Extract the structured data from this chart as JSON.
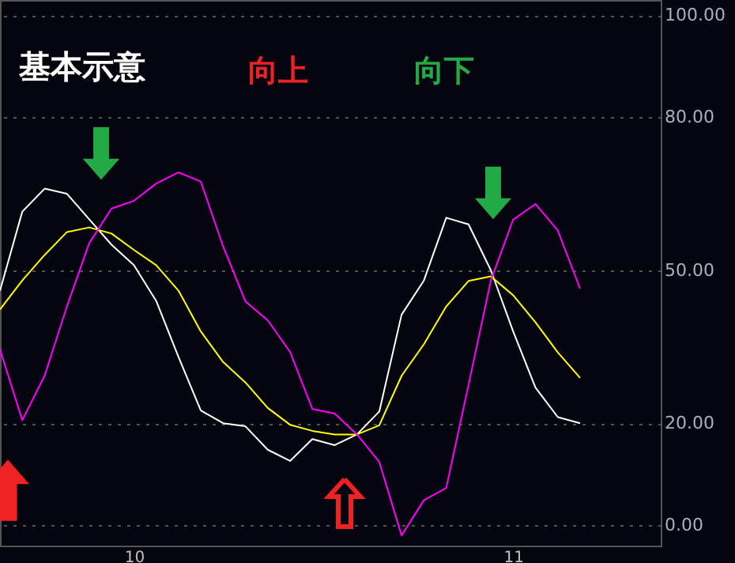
{
  "chart_data": {
    "type": "line",
    "title": "基本示意",
    "annotations": [
      "向上",
      "向下"
    ],
    "categories": [
      null,
      null,
      null,
      null,
      null,
      null,
      "10",
      null,
      null,
      null,
      null,
      null,
      null,
      null,
      null,
      null,
      null,
      null,
      null,
      null,
      null,
      null,
      null,
      "11",
      null,
      null,
      null
    ],
    "series": [
      {
        "color": "#ffffff",
        "values": [
          46,
          61.5,
          66,
          65,
          60,
          55,
          51,
          44,
          33,
          22.5,
          20,
          19.4,
          14.8,
          12.6,
          16.9,
          15.7,
          17.8,
          22.3,
          41.3,
          48,
          60.3,
          59,
          50,
          38,
          27,
          21.2,
          20
        ]
      },
      {
        "color": "#ffff00",
        "values": [
          42.3,
          48,
          53,
          57.5,
          58.4,
          57.2,
          54,
          51,
          46,
          38,
          32,
          28,
          23,
          19.7,
          18.5,
          17.8,
          17.8,
          19.6,
          29.3,
          35.5,
          42.9,
          47.9,
          48.8,
          45.1,
          39.8,
          33.9,
          28.9
        ]
      },
      {
        "color": "#ff00ff",
        "values": [
          34.5,
          20.6,
          29.3,
          42.9,
          55.3,
          62.1,
          63.6,
          67,
          69.2,
          67.4,
          54.7,
          43.9,
          40.2,
          34,
          22.8,
          21.9,
          17.8,
          12.4,
          -2,
          4.9,
          7.3,
          27.5,
          48,
          59.9,
          63,
          57.8,
          46.4
        ]
      }
    ],
    "ylim": [
      -4,
      103
    ],
    "yticks": [
      {
        "value": 0,
        "label": "0.00"
      },
      {
        "value": 20,
        "label": "20.00"
      },
      {
        "value": 50,
        "label": "50.00"
      },
      {
        "value": 80,
        "label": "80.00"
      },
      {
        "value": 100,
        "label": "100.00"
      }
    ],
    "grid": "y",
    "marker": "none",
    "line_style": "solid"
  }
}
